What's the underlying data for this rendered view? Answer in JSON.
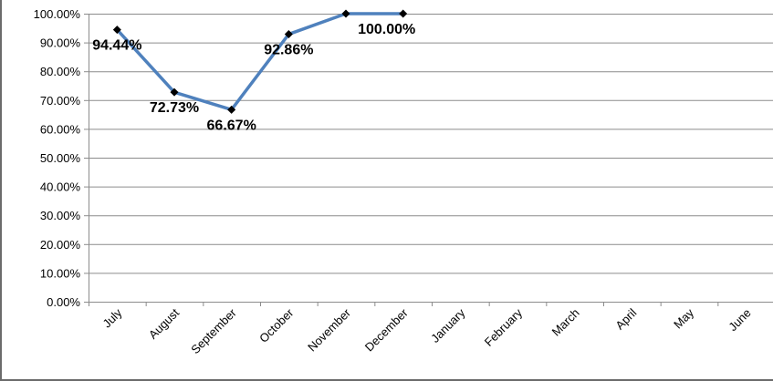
{
  "chart_data": {
    "type": "line",
    "title": "",
    "xlabel": "",
    "ylabel": "",
    "categories": [
      "July",
      "August",
      "September",
      "October",
      "November",
      "December",
      "January",
      "February",
      "March",
      "April",
      "May",
      "June"
    ],
    "series": [
      {
        "values": [
          94.44,
          72.73,
          66.67,
          92.86,
          100.0,
          100.0,
          null,
          null,
          null,
          null,
          null,
          null
        ]
      }
    ],
    "data_labels": [
      "94.44%",
      "72.73%",
      "66.67%",
      "92.86%",
      "",
      "100.00%"
    ],
    "ylim": [
      0,
      100
    ],
    "y_ticks": [
      {
        "value": 100,
        "label": "100.00%"
      },
      {
        "value": 90,
        "label": "90.00%"
      },
      {
        "value": 80,
        "label": "80.00%"
      },
      {
        "value": 70,
        "label": "70.00%"
      },
      {
        "value": 60,
        "label": "60.00%"
      },
      {
        "value": 50,
        "label": "50.00%"
      },
      {
        "value": 40,
        "label": "40.00%"
      },
      {
        "value": 30,
        "label": "30.00%"
      },
      {
        "value": 20,
        "label": "20.00%"
      },
      {
        "value": 10,
        "label": "10.00%"
      },
      {
        "value": 0,
        "label": "0.00%"
      }
    ],
    "grid": true,
    "legend": "none",
    "colors": {
      "line": "#4f81bd",
      "marker": "#000000",
      "grid": "#8c8c8c",
      "axis": "#8c8c8c"
    }
  }
}
